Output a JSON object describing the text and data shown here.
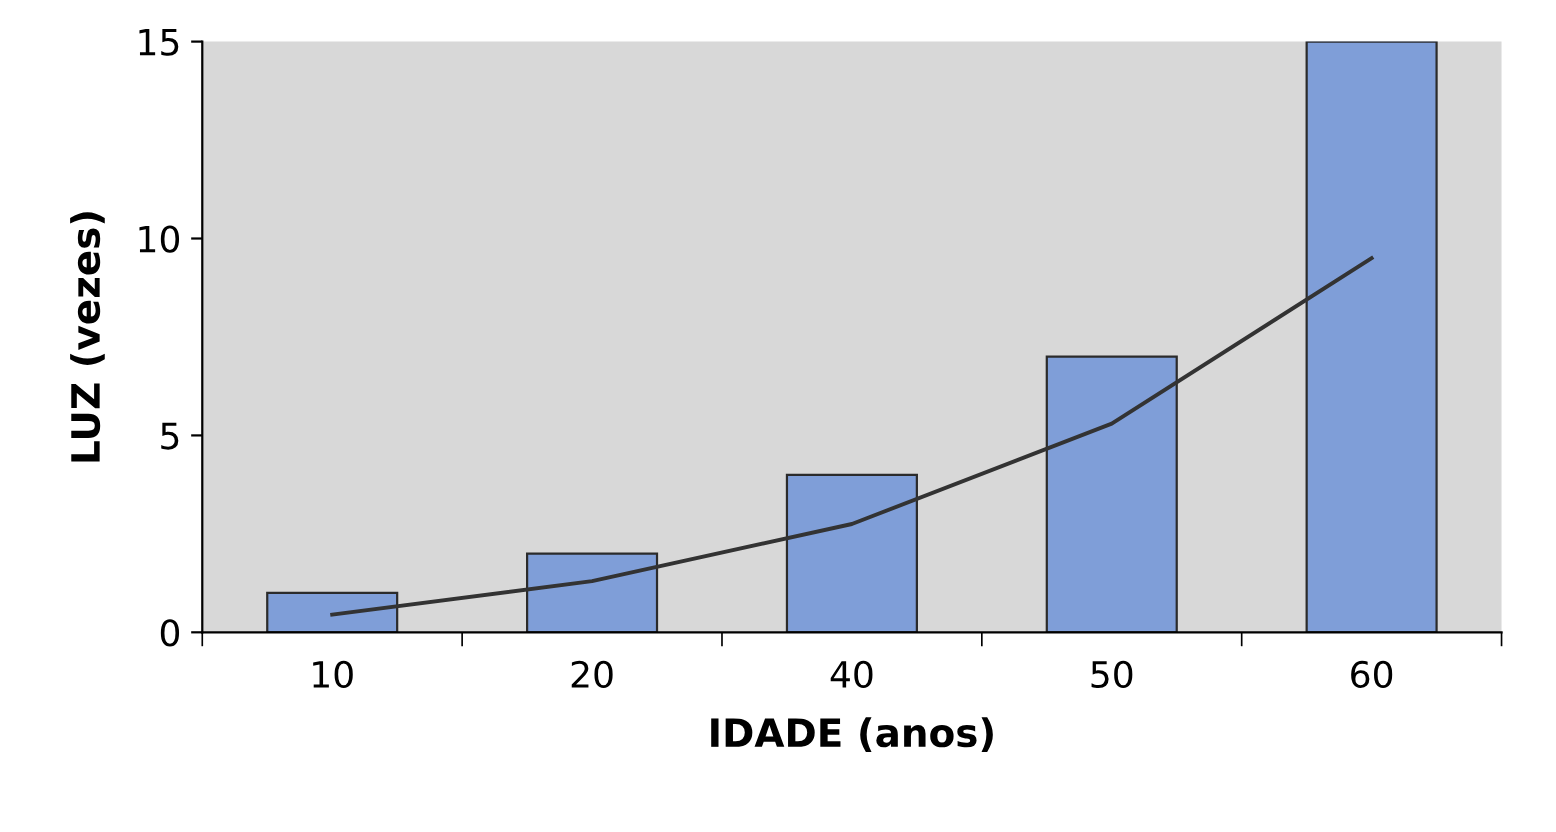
{
  "chart_data": {
    "type": "bar",
    "xlabel": "IDADE (anos)",
    "ylabel": "LUZ (vezes)",
    "categories": [
      "10",
      "20",
      "40",
      "50",
      "60"
    ],
    "series": [
      {
        "color": "#7f9ed8",
        "values": [
          1,
          2,
          4,
          7,
          15
        ]
      },
      {
        "type": "line",
        "color": "#333333",
        "x": [
          "10",
          "20",
          "40",
          "50",
          "60"
        ],
        "values": [
          0.45,
          1.3,
          2.75,
          5.3,
          9.5
        ]
      }
    ],
    "ylim": [
      0,
      15
    ],
    "yticks": [
      0,
      5,
      10,
      15
    ],
    "grid": false,
    "legend": false,
    "marker": "none",
    "line_style": "solid"
  }
}
